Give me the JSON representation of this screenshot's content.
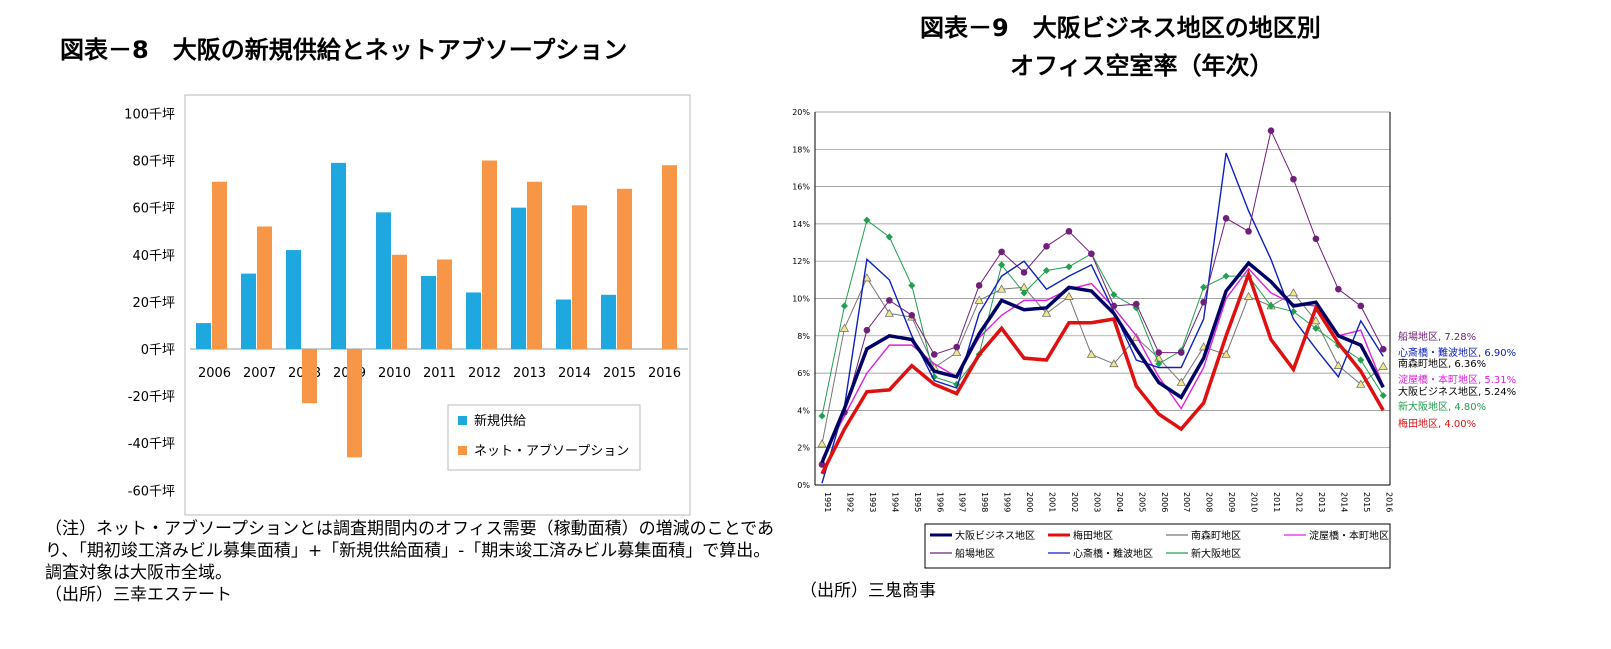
{
  "chart_data": [
    {
      "type": "bar",
      "title": "図表－8　大阪の新規供給とネットアブソープション",
      "categories": [
        "2006",
        "2007",
        "2008",
        "2009",
        "2010",
        "2011",
        "2012",
        "2013",
        "2014",
        "2015",
        "2016"
      ],
      "series": [
        {
          "name": "新規供給",
          "color": "#1fa8e0",
          "values": [
            11,
            32,
            42,
            79,
            58,
            31,
            24,
            60,
            21,
            23,
            null
          ]
        },
        {
          "name": "ネット・アブソープション",
          "color": "#f79646",
          "values": [
            71,
            52,
            -23,
            -46,
            40,
            38,
            80,
            71,
            61,
            68,
            78
          ]
        }
      ],
      "ylim": [
        -60,
        100
      ],
      "yticks": [
        100,
        80,
        60,
        40,
        20,
        0,
        -20,
        -40,
        -60
      ],
      "tick_suffix": "千坪",
      "legend": "bottom-right",
      "grid": false
    },
    {
      "type": "line",
      "title_lines": [
        "図表－9　大阪ビジネス地区の地区別",
        "オフィス空室率（年次）"
      ],
      "x": [
        "1991",
        "1992",
        "1993",
        "1994",
        "1995",
        "1996",
        "1997",
        "1998",
        "1999",
        "2000",
        "2001",
        "2002",
        "2003",
        "2004",
        "2005",
        "2006",
        "2007",
        "2008",
        "2009",
        "2010",
        "2011",
        "2012",
        "2013",
        "2014",
        "2015",
        "2016"
      ],
      "ylim": [
        0,
        20
      ],
      "yticks": [
        "0%",
        "2%",
        "4%",
        "6%",
        "8%",
        "10%",
        "12%",
        "14%",
        "16%",
        "18%",
        "20%"
      ],
      "grid": true,
      "legend": "bottom",
      "series": [
        {
          "name": "大阪ビジネス地区",
          "color": "#000066",
          "end_label": "大阪ビジネス地区, 5.24%",
          "label_color": "#000000",
          "values": [
            1.2,
            4.1,
            7.3,
            8.0,
            7.8,
            6.1,
            5.8,
            8.1,
            9.9,
            9.4,
            9.5,
            10.6,
            10.4,
            9.2,
            7.3,
            5.5,
            4.7,
            6.8,
            10.4,
            11.9,
            10.9,
            9.6,
            9.8,
            8.0,
            7.5,
            5.24
          ]
        },
        {
          "name": "梅田地区",
          "color": "#e01010",
          "end_label": "梅田地区, 4.00%",
          "label_color": "#e01010",
          "values": [
            0.6,
            3.0,
            5.0,
            5.1,
            6.4,
            5.4,
            4.9,
            7.0,
            8.4,
            6.8,
            6.7,
            8.7,
            8.7,
            8.9,
            5.3,
            3.8,
            3.0,
            4.4,
            8.0,
            11.3,
            7.8,
            6.2,
            9.5,
            7.6,
            6.1,
            4.0
          ]
        },
        {
          "name": "南森町地区",
          "color": "#777777",
          "end_label": "南森町地区, 6.36%",
          "label_color": "#000000",
          "values": [
            2.2,
            8.4,
            11.1,
            9.2,
            9.0,
            6.3,
            7.1,
            9.9,
            10.5,
            10.6,
            9.2,
            10.1,
            7.0,
            6.5,
            7.9,
            6.8,
            5.5,
            7.4,
            7.0,
            10.1,
            9.6,
            10.3,
            8.8,
            6.4,
            5.4,
            6.36
          ]
        },
        {
          "name": "淀屋橋・本町地区",
          "color": "#e020e0",
          "end_label": "淀屋橋・本町地区, 5.31%",
          "label_color": "#e020e0",
          "values": [
            1.4,
            3.7,
            6.0,
            7.5,
            7.5,
            6.5,
            5.8,
            7.9,
            9.1,
            9.9,
            9.9,
            10.5,
            10.8,
            9.5,
            8.0,
            5.8,
            4.1,
            6.3,
            10.0,
            11.6,
            10.3,
            9.7,
            9.6,
            8.0,
            8.3,
            5.31
          ]
        },
        {
          "name": "船場地区",
          "color": "#70207a",
          "end_label": "船場地区, 7.28%",
          "label_color": "#70207a",
          "values": [
            1.1,
            3.9,
            8.3,
            9.9,
            9.1,
            7.0,
            7.4,
            10.7,
            12.5,
            11.4,
            12.8,
            13.6,
            12.4,
            9.6,
            9.7,
            7.1,
            7.1,
            9.8,
            14.3,
            13.6,
            19.0,
            16.4,
            13.2,
            10.5,
            9.6,
            7.28
          ]
        },
        {
          "name": "心斎橋・難波地区",
          "color": "#1020c0",
          "end_label": "心斎橋・難波地区, 6.90%",
          "label_color": "#1020c0",
          "values": [
            0.1,
            4.2,
            12.1,
            11.0,
            8.0,
            5.6,
            5.2,
            9.2,
            11.2,
            12.0,
            10.5,
            11.2,
            11.8,
            9.3,
            6.7,
            6.3,
            6.3,
            8.9,
            17.8,
            14.7,
            12.1,
            8.9,
            7.3,
            5.8,
            8.8,
            6.9
          ]
        },
        {
          "name": "新大阪地区",
          "color": "#20a050",
          "end_label": "新大阪地区, 4.80%",
          "label_color": "#20a050",
          "values": [
            3.7,
            9.6,
            14.2,
            13.3,
            10.7,
            5.8,
            5.4,
            7.0,
            11.8,
            10.3,
            11.5,
            11.7,
            12.4,
            10.2,
            9.5,
            6.5,
            7.2,
            10.6,
            11.2,
            11.2,
            9.6,
            9.3,
            8.4,
            7.5,
            6.7,
            4.8
          ]
        }
      ]
    }
  ],
  "notes": {
    "left": "（注）ネット・アブソープションとは調査期間内のオフィス需要（稼動面積）の増減のことであり、「期初竣工済みビル募集面積」+「新規供給面積」-「期末竣工済みビル募集面積」で算出。調査対象は大阪市全域。",
    "left_source": "（出所）三幸エステート",
    "right_source": "（出所）三鬼商事"
  }
}
